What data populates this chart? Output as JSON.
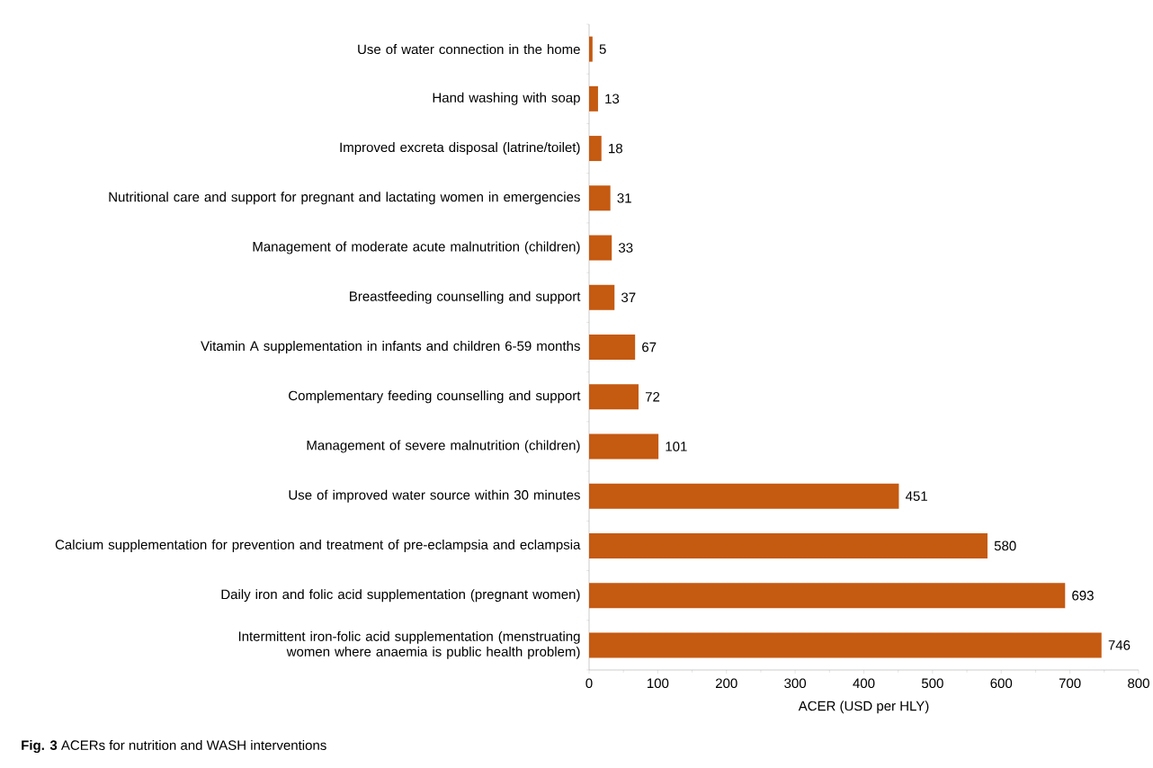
{
  "chart_data": {
    "type": "bar",
    "orientation": "horizontal",
    "title": "**Fig. 3**  ACERs for nutrition and WASH interventions",
    "xlabel": "ACER (USD per HLY)",
    "categories": [
      "Use of water connection in the home",
      "Hand washing with soap",
      "Improved excreta disposal (latrine/toilet)",
      "Nutritional care and support for pregnant and lactating women in emergencies",
      "Management of moderate acute malnutrition (children)",
      "Breastfeeding counselling and support",
      "Vitamin A supplementation in infants and children 6-59 months",
      "Complementary feeding counselling and support",
      "Management of severe malnutrition (children)",
      "Use of improved water source within 30 minutes",
      "Calcium supplementation for prevention and treatment of pre-eclampsia and eclampsia",
      "Daily iron and folic acid supplementation (pregnant women)",
      "Intermittent iron-folic acid supplementation (menstruating  women where anaemia is public health problem)"
    ],
    "values": [
      5,
      13,
      18,
      31,
      33,
      37,
      67,
      72,
      101,
      451,
      580,
      693,
      746
    ],
    "color": "#c55a11",
    "data_labels": true,
    "grid": false,
    "xlim": [
      0,
      800
    ],
    "xticks": [
      0,
      100,
      200,
      300,
      400,
      500,
      600,
      700,
      800
    ]
  }
}
